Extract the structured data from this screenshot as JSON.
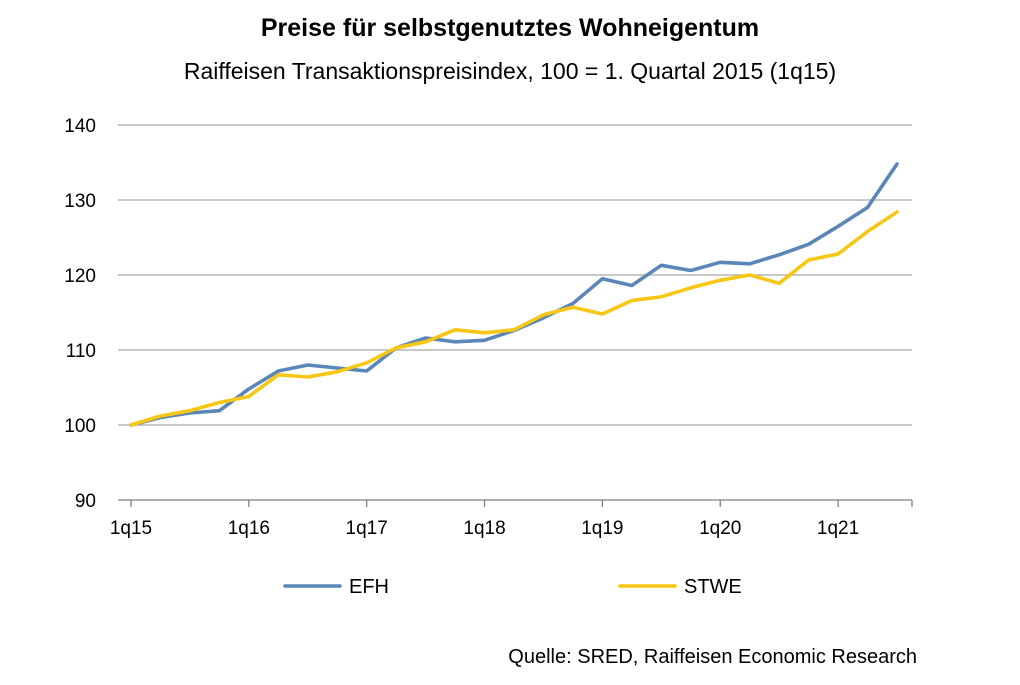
{
  "title": "Preise für selbstgenutztes Wohneigentum",
  "subtitle": "Raiffeisen Transaktionspreisindex, 100 = 1. Quartal 2015 (1q15)",
  "source": "Quelle: SRED, Raiffeisen Economic Research",
  "colors": {
    "EFH": "#5b86b8",
    "STWE": "#f7c714",
    "grid": "#a6a6a6",
    "axis": "#808080"
  },
  "chart_data": {
    "type": "line",
    "x": [
      "1q15",
      "2q15",
      "3q15",
      "4q15",
      "1q16",
      "2q16",
      "3q16",
      "4q16",
      "1q17",
      "2q17",
      "3q17",
      "4q17",
      "1q18",
      "2q18",
      "3q18",
      "4q18",
      "1q19",
      "2q19",
      "3q19",
      "4q19",
      "1q20",
      "2q20",
      "3q20",
      "4q20",
      "1q21",
      "2q21",
      "3q21"
    ],
    "x_tick_labels": [
      "1q15",
      "1q16",
      "1q17",
      "1q18",
      "1q19",
      "1q20",
      "1q21"
    ],
    "y_tick_labels": [
      "90",
      "100",
      "110",
      "120",
      "130",
      "140"
    ],
    "ylim": [
      90,
      140
    ],
    "grid": true,
    "legend_position": "bottom",
    "series": [
      {
        "name": "EFH",
        "values": [
          100.0,
          101.0,
          101.6,
          101.9,
          104.8,
          107.2,
          108.0,
          107.6,
          107.2,
          110.3,
          111.6,
          111.1,
          111.3,
          112.6,
          114.3,
          116.2,
          119.5,
          118.6,
          121.3,
          120.6,
          121.7,
          121.5,
          122.7,
          124.1,
          126.5,
          129.0,
          134.8
        ]
      },
      {
        "name": "STWE",
        "values": [
          100.0,
          101.2,
          101.9,
          103.0,
          103.8,
          106.7,
          106.4,
          107.1,
          108.3,
          110.3,
          111.1,
          112.7,
          112.3,
          112.7,
          114.7,
          115.7,
          114.8,
          116.6,
          117.1,
          118.3,
          119.3,
          120.0,
          118.9,
          122.0,
          122.8,
          125.8,
          128.4
        ]
      }
    ]
  }
}
